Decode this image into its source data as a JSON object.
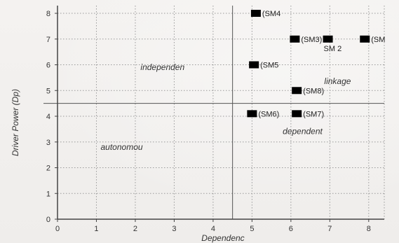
{
  "chart_data": {
    "type": "scatter",
    "xlabel": "Dependenc",
    "ylabel": "Driver Power (Dp)",
    "xlim": [
      0,
      8.4
    ],
    "ylim": [
      0,
      8.3
    ],
    "x_ticks": [
      0,
      1,
      2,
      3,
      4,
      5,
      6,
      7,
      8
    ],
    "y_ticks": [
      0,
      1,
      2,
      3,
      4,
      5,
      6,
      7,
      8
    ],
    "grid": true,
    "quadrant_dividers": {
      "x": 4.5,
      "y": 4.5
    },
    "quadrant_labels": [
      {
        "text": "independen",
        "x": 2.7,
        "y": 5.8
      },
      {
        "text": "linkage",
        "x": 7.2,
        "y": 5.25
      },
      {
        "text": "autonomou",
        "x": 1.65,
        "y": 2.7
      },
      {
        "text": "dependent",
        "x": 6.3,
        "y": 3.3
      }
    ],
    "points": [
      {
        "label": "(SM4",
        "x": 5.1,
        "y": 8.0
      },
      {
        "label": "(SM3)",
        "x": 6.1,
        "y": 7.0
      },
      {
        "label": "SM 2",
        "x": 6.95,
        "y": 7.0
      },
      {
        "label": "(SM",
        "x": 7.9,
        "y": 7.0
      },
      {
        "label": "(SM5",
        "x": 5.05,
        "y": 6.0
      },
      {
        "label": "(SM8)",
        "x": 6.15,
        "y": 5.0
      },
      {
        "label": "(SM6)",
        "x": 5.0,
        "y": 4.1
      },
      {
        "label": "(SM7)",
        "x": 6.15,
        "y": 4.1
      }
    ],
    "colors": {
      "marker": "#000000",
      "grid": "#9a9a9a",
      "axis": "#444444"
    }
  }
}
